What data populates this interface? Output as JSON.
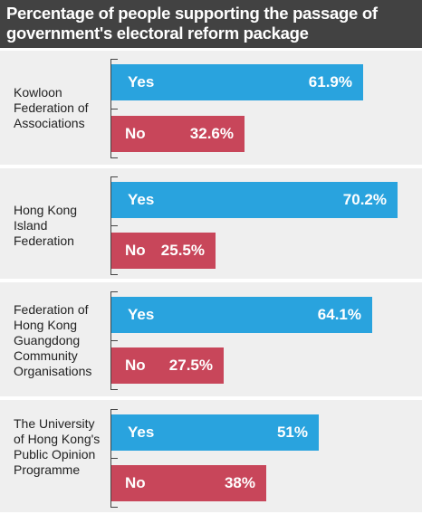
{
  "header": {
    "title_line1": "Percentage of people supporting the passage of",
    "title_line2": "government's electoral reform package"
  },
  "colors": {
    "yes": "#29a3de",
    "no": "#c8465a",
    "header_bg": "#424242",
    "panel_bg": "#efefef"
  },
  "chart_data": {
    "type": "bar",
    "orientation": "horizontal",
    "title": "Percentage of people supporting the passage of government's electoral reform package",
    "categories": [
      "Kowloon Federation of Associations",
      "Hong Kong Island Federation",
      "Federation of Hong Kong Guangdong Community Organisations",
      "The University of Hong Kong's Public Opinion Programme"
    ],
    "category_lines": [
      [
        "Kowloon",
        "Federation of",
        "Associations"
      ],
      [
        "Hong Kong",
        "Island",
        "Federation"
      ],
      [
        "Federation of",
        "Hong Kong",
        "Guangdong",
        "Community",
        "Organisations"
      ],
      [
        "The University",
        "of Hong Kong's",
        "Public Opinion",
        "Programme"
      ]
    ],
    "series": [
      {
        "name": "Yes",
        "values": [
          61.9,
          70.2,
          64.1,
          51
        ],
        "labels": [
          "61.9%",
          "70.2%",
          "64.1%",
          "51%"
        ]
      },
      {
        "name": "No",
        "values": [
          32.6,
          25.5,
          27.5,
          38
        ],
        "labels": [
          "32.6%",
          "25.5%",
          "27.5%",
          "38%"
        ]
      }
    ],
    "unit": "%"
  }
}
